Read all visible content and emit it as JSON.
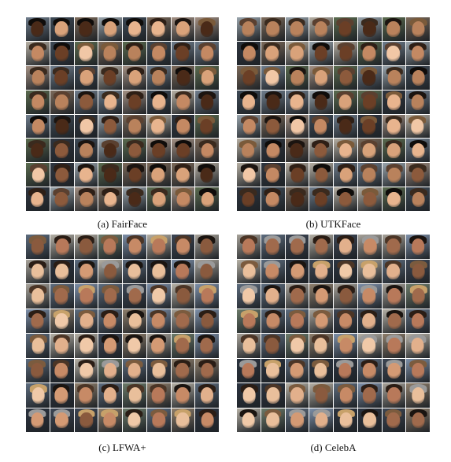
{
  "figure": {
    "panels": [
      {
        "id": "fairface",
        "caption": "(a) FairFace",
        "rows": 8,
        "cols": 8,
        "image_description": "grid of face thumbnails",
        "palette_key": "diverse"
      },
      {
        "id": "utkface",
        "caption": "(b) UTKFace",
        "rows": 8,
        "cols": 8,
        "image_description": "grid of face thumbnails",
        "palette_key": "diverse"
      },
      {
        "id": "lfwa",
        "caption": "(c) LFWA+",
        "rows": 8,
        "cols": 8,
        "image_description": "grid of face thumbnails",
        "palette_key": "light"
      },
      {
        "id": "celeba",
        "caption": "(d) CelebA",
        "rows": 8,
        "cols": 8,
        "image_description": "grid of face thumbnails",
        "palette_key": "light"
      }
    ]
  },
  "palettes": {
    "diverse": {
      "skin": [
        "#f1c7a6",
        "#d9a27a",
        "#b9825c",
        "#8c5a3c",
        "#6b3f26",
        "#4a2a18",
        "#e8b48e",
        "#c48963"
      ],
      "hair": [
        "#1b1410",
        "#2e1f16",
        "#3a2a1e",
        "#5a4030",
        "#0f0c0a",
        "#7a5a3a"
      ],
      "bg": [
        "#6f7d8c",
        "#9aa5ad",
        "#3e4a56",
        "#b7b0a4",
        "#7c6a5a",
        "#5b6b4f",
        "#a49184",
        "#2f3640"
      ]
    },
    "light": {
      "skin": [
        "#f0c9a8",
        "#e2b08c",
        "#d49a74",
        "#c78a66",
        "#b8795a",
        "#a06a4c",
        "#e9bf9b",
        "#8a5a3e"
      ],
      "hair": [
        "#2a1d15",
        "#4b3526",
        "#7b5b3e",
        "#c7a16a",
        "#9a9a9a",
        "#1a1410"
      ],
      "bg": [
        "#7d8fa8",
        "#5d6c7e",
        "#a8a39a",
        "#3d4654",
        "#8f7f6c",
        "#6c7b6a",
        "#b6b1a6",
        "#2c3440"
      ]
    }
  }
}
